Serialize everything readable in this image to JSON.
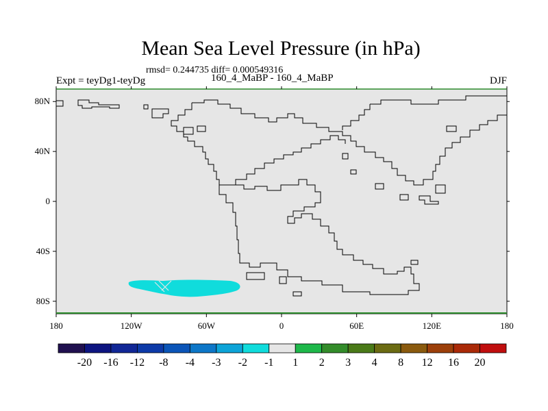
{
  "title": "Mean Sea Level Pressure (in hPa)",
  "stats": "rmsd= 0.244735 diff= 0.000549316",
  "experiment": "Expt = teyDg1-teyDg",
  "period": "160_4_MaBP - 160_4_MaBP",
  "season": "DJF",
  "chart_data": {
    "type": "heatmap",
    "x_ticks": [
      "180",
      "120W",
      "60W",
      "0",
      "60E",
      "120E",
      "180"
    ],
    "y_ticks": [
      "80N",
      "40N",
      "0",
      "40S",
      "80S"
    ],
    "xlim": [
      -180,
      180
    ],
    "ylim": [
      -90,
      90
    ],
    "colorbar": {
      "labels": [
        "-20",
        "-16",
        "-12",
        "-8",
        "-4",
        "-3",
        "-2",
        "-1",
        "1",
        "2",
        "3",
        "4",
        "8",
        "12",
        "16",
        "20"
      ],
      "colors": [
        "#20104f",
        "#0d1580",
        "#112796",
        "#0d3aa8",
        "#0b55b8",
        "#0d77c8",
        "#0da4d8",
        "#10dcdc",
        "#e6e6e6",
        "#1eb84a",
        "#338c2a",
        "#4a7a18",
        "#6b6b12",
        "#8a5a0e",
        "#9c3f0a",
        "#aa2a08",
        "#c00e0e"
      ]
    },
    "anomalies": [
      {
        "region": "Southern Ocean south of South America",
        "lon_range": [
          -123,
          -33
        ],
        "lat_range": [
          -77,
          -63
        ],
        "bin": "-2 to -1",
        "color": "#10dcdc"
      }
    ],
    "background_bin": "-1 to 1"
  }
}
